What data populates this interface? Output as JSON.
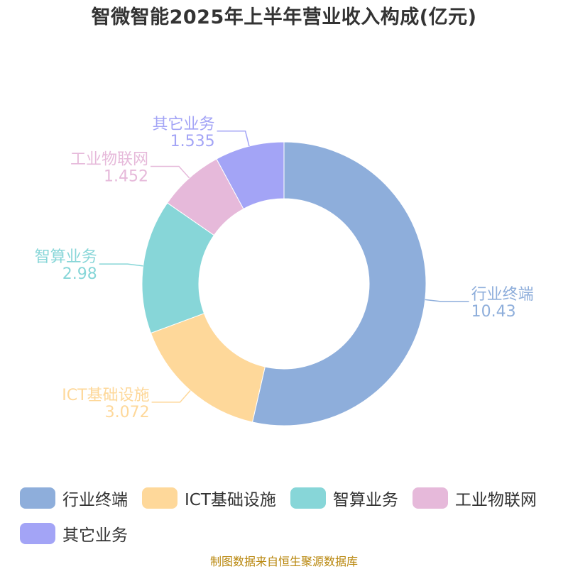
{
  "chart_data": {
    "type": "pie",
    "donut": true,
    "title": "智微智能2025年上半年营业收入构成(亿元)",
    "series": [
      {
        "name": "行业终端",
        "value": 10.43,
        "color": "#8eaedb"
      },
      {
        "name": "ICT基础设施",
        "value": 3.072,
        "color": "#fed89a"
      },
      {
        "name": "智算业务",
        "value": 2.98,
        "color": "#87d6d8"
      },
      {
        "name": "工业物联网",
        "value": 1.452,
        "color": "#e6b9da"
      },
      {
        "name": "其它业务",
        "value": 1.535,
        "color": "#a3a4f6"
      }
    ],
    "value_labels": [
      "10.43",
      "3.072",
      "2.98",
      "1.452",
      "1.535"
    ],
    "legend_position": "bottom"
  },
  "source": "制图数据来自恒生聚源数据库"
}
